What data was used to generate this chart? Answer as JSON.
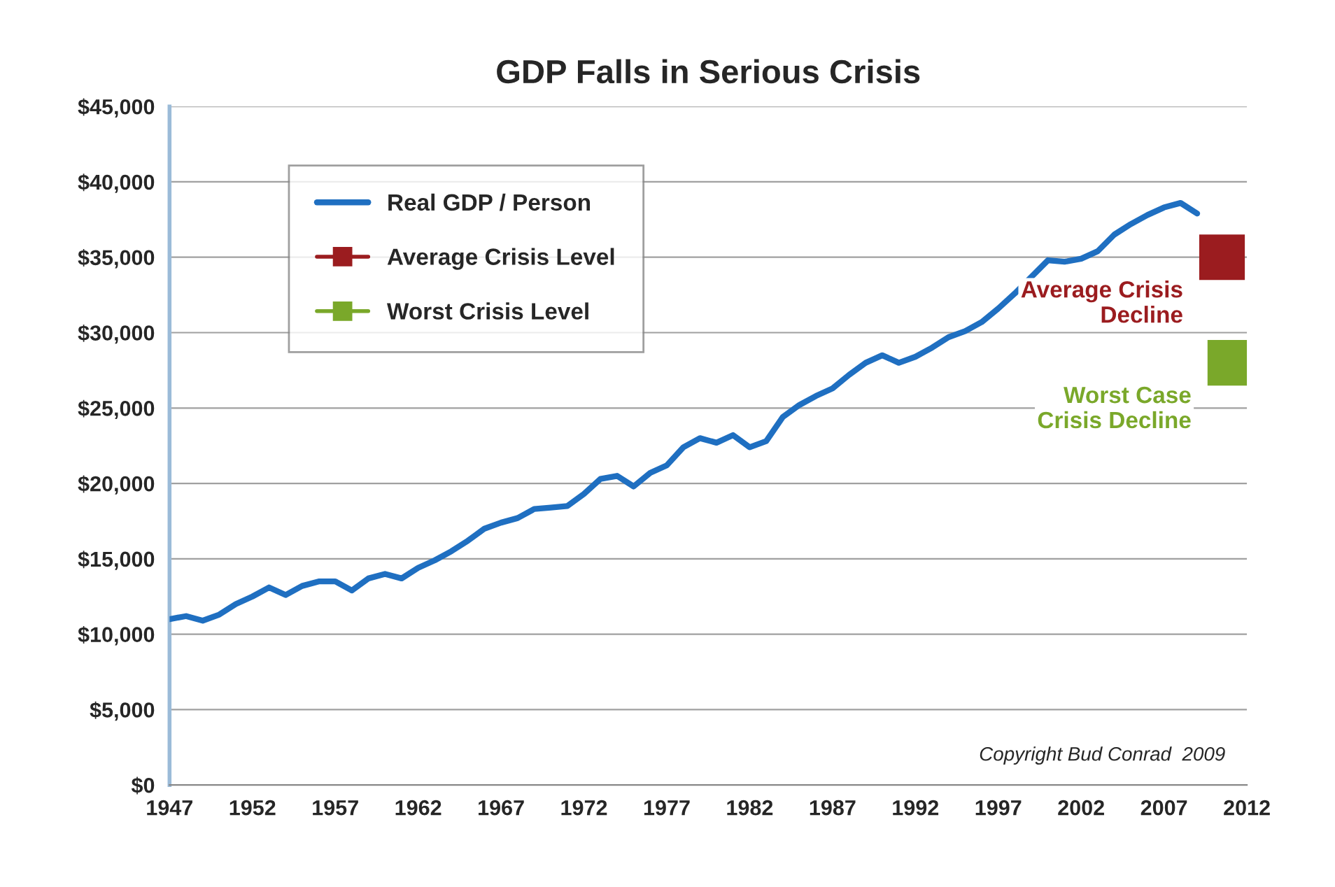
{
  "chart_data": {
    "type": "line",
    "title": "GDP Falls in Serious Crisis",
    "xlim": [
      1947,
      2012
    ],
    "xticks": [
      1947,
      1952,
      1957,
      1962,
      1967,
      1972,
      1977,
      1982,
      1987,
      1992,
      1997,
      2002,
      2007,
      2012
    ],
    "ylim": [
      0,
      45000
    ],
    "yticks": [
      {
        "value": 0,
        "label": "$0"
      },
      {
        "value": 5000,
        "label": "$5,000"
      },
      {
        "value": 10000,
        "label": "$10,000"
      },
      {
        "value": 15000,
        "label": "$15,000"
      },
      {
        "value": 20000,
        "label": "$20,000"
      },
      {
        "value": 25000,
        "label": "$25,000"
      },
      {
        "value": 30000,
        "label": "$30,000"
      },
      {
        "value": 35000,
        "label": "$35,000"
      },
      {
        "value": 40000,
        "label": "$40,000"
      },
      {
        "value": 45000,
        "label": "$45,000"
      }
    ],
    "grid": "y",
    "legend": "top left",
    "series": [
      {
        "name": "Real GDP / Person",
        "color": "#1f6fc1",
        "marker": "none",
        "x": [
          1947,
          1948,
          1949,
          1950,
          1951,
          1952,
          1953,
          1954,
          1955,
          1956,
          1957,
          1958,
          1959,
          1960,
          1961,
          1962,
          1963,
          1964,
          1965,
          1966,
          1967,
          1968,
          1969,
          1970,
          1971,
          1972,
          1973,
          1974,
          1975,
          1976,
          1977,
          1978,
          1979,
          1980,
          1981,
          1982,
          1983,
          1984,
          1985,
          1986,
          1987,
          1988,
          1989,
          1990,
          1991,
          1992,
          1993,
          1994,
          1995,
          1996,
          1997,
          1998,
          1999,
          2000,
          2001,
          2002,
          2003,
          2004,
          2005,
          2006,
          2007,
          2008,
          2009
        ],
        "values": [
          11000,
          11200,
          10900,
          11300,
          12000,
          12500,
          13100,
          12600,
          13200,
          13500,
          13500,
          12900,
          13700,
          14000,
          13700,
          14400,
          14900,
          15500,
          16200,
          17000,
          17400,
          17700,
          18300,
          18400,
          18500,
          19300,
          20300,
          20500,
          19800,
          20700,
          21200,
          22400,
          23000,
          22700,
          23200,
          22400,
          22800,
          24400,
          25200,
          25800,
          26300,
          27200,
          28000,
          28500,
          28000,
          28400,
          29000,
          29700,
          30100,
          30700,
          31600,
          32600,
          33700,
          34800,
          34700,
          34900,
          35400,
          36500,
          37200,
          37800,
          38300,
          38600,
          37900
        ]
      },
      {
        "name": "Average Crisis Level",
        "type": "scatter",
        "color": "#9b1c1f",
        "marker": "square",
        "x": [
          2010.5
        ],
        "values": [
          35000
        ]
      },
      {
        "name": "Worst Crisis Level",
        "type": "scatter",
        "color": "#7aa82a",
        "marker": "square",
        "x": [
          2011
        ],
        "values": [
          28000
        ]
      }
    ],
    "annotations": [
      {
        "text": "Average Crisis\nDecline",
        "x": 2010.5,
        "y": 35000
      },
      {
        "text": "Worst Case\nCrisis Decline",
        "x": 2011,
        "y": 28000
      },
      "Copyright Bud Conrad  2009"
    ]
  }
}
